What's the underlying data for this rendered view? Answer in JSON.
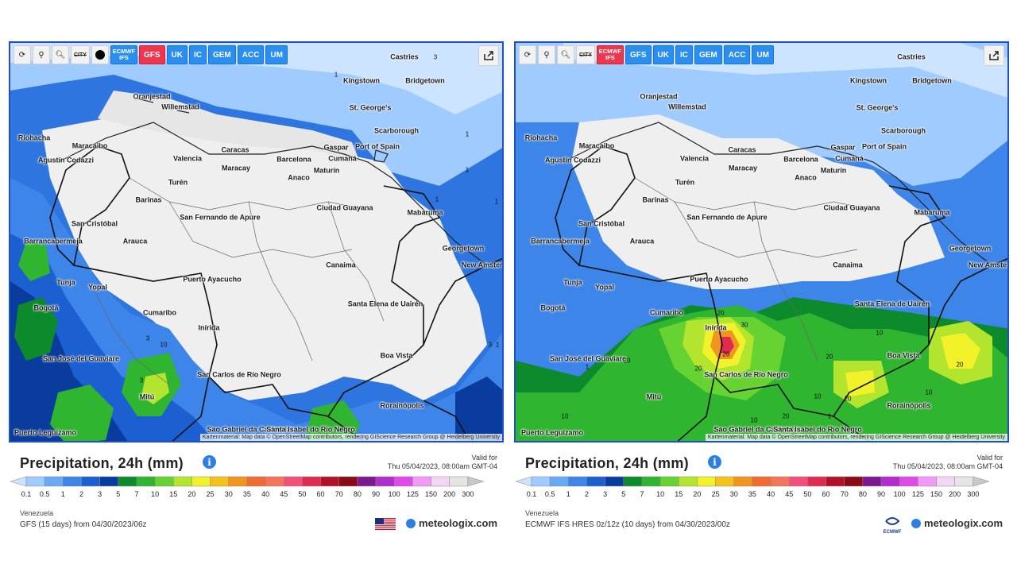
{
  "toolbar": {
    "refresh_icon": "refresh-icon",
    "location_icon": "location-pin-icon",
    "zoom_icon": "zoom-icon",
    "city_label": "CITY",
    "dot_icon": "black-dot-icon",
    "share_icon": "share-icon"
  },
  "panels": [
    {
      "models": [
        {
          "label": "ECMWF IFS",
          "active": false,
          "two_line": true
        },
        {
          "label": "GFS",
          "active": true
        },
        {
          "label": "UK",
          "active": false
        },
        {
          "label": "IC",
          "active": false
        },
        {
          "label": "GEM",
          "active": false
        },
        {
          "label": "ACC",
          "active": false
        },
        {
          "label": "UM",
          "active": false
        }
      ],
      "title": "Precipitation, 24h (mm)",
      "valid_for_label": "Valid for",
      "valid_time": "Thu 05/04/2023, 08:00am GMT-04",
      "region": "Venezuela",
      "model_info": "GFS (15 days) from 04/30/2023/06z",
      "brand": "meteologix.com",
      "attribution": "Kartenmaterial: Map data © OpenStreetMap contributors, rendering GIScience Research Group @ Heidelberg University",
      "contours": [
        "3",
        "1",
        "1",
        "1",
        "1",
        "1",
        "3",
        "10",
        "3",
        "1",
        "3"
      ]
    },
    {
      "models": [
        {
          "label": "ECMWF IFS",
          "active": true,
          "two_line": true
        },
        {
          "label": "GFS",
          "active": false
        },
        {
          "label": "UK",
          "active": false
        },
        {
          "label": "IC",
          "active": false
        },
        {
          "label": "GEM",
          "active": false
        },
        {
          "label": "ACC",
          "active": false
        },
        {
          "label": "UM",
          "active": false
        }
      ],
      "title": "Precipitation, 24h (mm)",
      "valid_for_label": "Valid for",
      "valid_time": "Thu 05/04/2023, 08:00am GMT-04",
      "region": "Venezuela",
      "model_info": "ECMWF IFS HRES 0z/12z (10 days) from 04/30/2023/00z",
      "brand": "meteologix.com",
      "ecmwf_label": "ECMWF",
      "attribution": "Kartenmaterial: Map data © OpenStreetMap contributors, rendering GIScience Research Group @ Heidelberg University",
      "contours": [
        "20",
        "30",
        "20",
        "20",
        "10",
        "20",
        "20",
        "10",
        "20",
        "10",
        "20",
        "10",
        "10",
        "20",
        "1",
        "1"
      ]
    }
  ],
  "cities": [
    "Castries",
    "Kingstown",
    "Bridgetown",
    "Oranjestad",
    "Willemstad",
    "St. George's",
    "Scarborough",
    "Port of Spain",
    "Maracaibo",
    "Caracas",
    "Valencia",
    "Maracay",
    "Barcelona",
    "Cumaná",
    "Maturín",
    "Anaco",
    "Barinas",
    "San Fernando de Apure",
    "Ciudad Guayana",
    "Mabaruma",
    "San Cristóbal",
    "Arauca",
    "Georgetown",
    "Barrancabermeja",
    "New Amsterdam",
    "Tunja",
    "Yopal",
    "Puerto Ayacucho",
    "Canaima",
    "Bogotá",
    "Cumaribo",
    "Santa Elena de Uairén",
    "Inírida",
    "San José del Guaviare",
    "San Carlos de Río Negro",
    "Boa Vista",
    "Mitú",
    "Rorainópolis",
    "Sao Gabriel da Cachoeira",
    "Santa Isabel do Rio Negro",
    "Puerto Leguízamo",
    "Riohacha",
    "Turén",
    "Agustín Codazzi",
    "Gaspar"
  ],
  "colorbar": {
    "ticks": [
      "0.1",
      "0.5",
      "1",
      "2",
      "3",
      "5",
      "7",
      "10",
      "15",
      "20",
      "25",
      "30",
      "35",
      "40",
      "45",
      "50",
      "60",
      "70",
      "80",
      "90",
      "100",
      "125",
      "150",
      "200",
      "300"
    ],
    "colors": [
      "#cce4ff",
      "#9fcbff",
      "#6aaaf5",
      "#3d85e8",
      "#1b5fd0",
      "#0a3c9e",
      "#0d8a2c",
      "#2fb52f",
      "#66d333",
      "#b4e52e",
      "#f2f22b",
      "#f5c21c",
      "#f0951d",
      "#ef6b2f",
      "#f2765a",
      "#f2507a",
      "#e02b50",
      "#b3102a",
      "#8a0a18",
      "#7a1a8e",
      "#b02ecb",
      "#e04ae8",
      "#f09af5",
      "#f4d5f5",
      "#e5e5e5",
      "#c8c8c8"
    ]
  }
}
